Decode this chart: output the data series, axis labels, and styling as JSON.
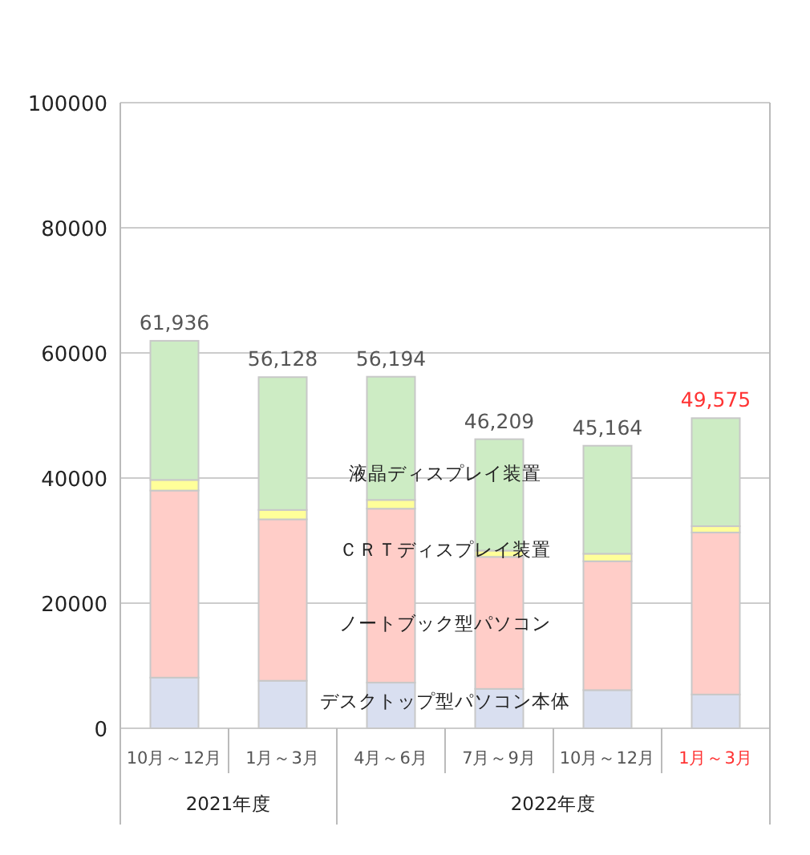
{
  "chart_data": {
    "type": "bar",
    "stacked": true,
    "categories": [
      "10月～12月",
      "1月～3月",
      "4月～6月",
      "7月～9月",
      "10月～12月",
      "1月～3月"
    ],
    "series": [
      {
        "name": "デスクトップ型パソコン本体",
        "color": "#d9dff0",
        "values": [
          8100,
          7600,
          7300,
          6300,
          6100,
          5400
        ]
      },
      {
        "name": "ノートブック型パソコン",
        "color": "#ffcdc8",
        "values": [
          29900,
          25800,
          27800,
          21100,
          20600,
          25900
        ]
      },
      {
        "name": "ＣＲＴディスプレイ装置",
        "color": "#ffff99",
        "values": [
          1700,
          1500,
          1400,
          1000,
          1200,
          1000
        ]
      },
      {
        "name": "液晶ディスプレイ装置",
        "color": "#cdecc4",
        "values": [
          22236,
          21228,
          19694,
          17809,
          17264,
          17275
        ]
      }
    ],
    "totals": [
      "61,936",
      "56,128",
      "56,194",
      "46,209",
      "45,164",
      "49,575"
    ],
    "ylim": [
      0,
      100000
    ],
    "yticks": [
      0,
      20000,
      40000,
      60000,
      80000,
      100000
    ],
    "grid": "y",
    "annotations": [
      "2021年度",
      "2022年度"
    ]
  }
}
